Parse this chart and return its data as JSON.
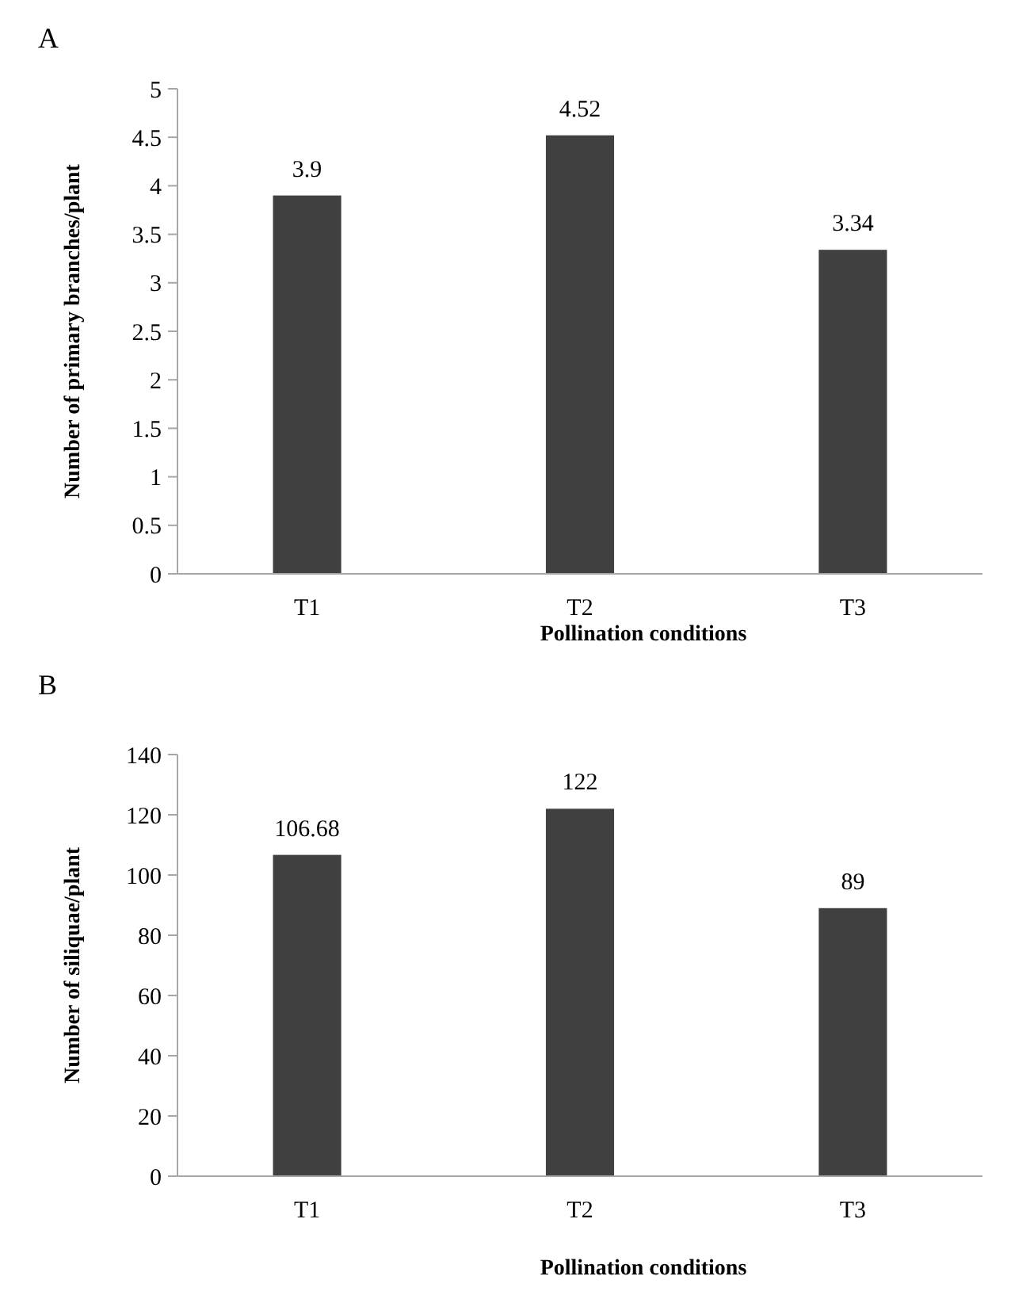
{
  "chart_data": [
    {
      "type": "bar",
      "title": "A",
      "categories": [
        "T1",
        "T2",
        "T3"
      ],
      "values": [
        3.9,
        4.52,
        3.34
      ],
      "color": "#404040",
      "ylim": [
        0,
        5
      ],
      "yticks": [
        0,
        0.5,
        1,
        1.5,
        2,
        2.5,
        3,
        3.5,
        4,
        4.5,
        5
      ],
      "xlabel": "Pollination conditions",
      "ylabel": "Number of primary branches/plant",
      "data_labels": true,
      "grid": false
    },
    {
      "type": "bar",
      "title": "B",
      "categories": [
        "T1",
        "T2",
        "T3"
      ],
      "values": [
        106.68,
        122,
        89
      ],
      "color": "#404040",
      "ylim": [
        0,
        140
      ],
      "yticks": [
        0,
        20,
        40,
        60,
        80,
        100,
        120,
        140
      ],
      "xlabel": "Pollination conditions",
      "ylabel": "Number of siliquae/plant",
      "data_labels": true,
      "grid": false
    }
  ]
}
